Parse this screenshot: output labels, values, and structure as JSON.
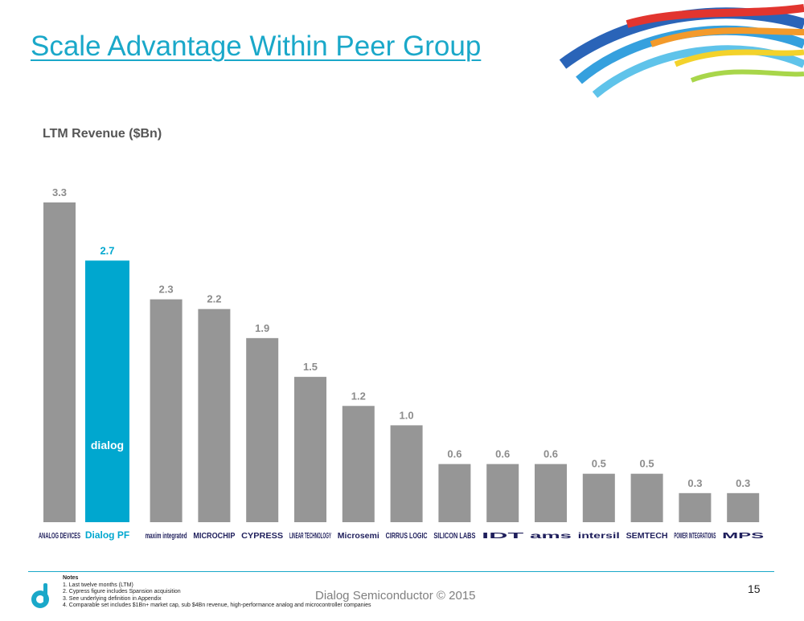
{
  "slide": {
    "title": "Scale Advantage Within Peer Group",
    "subtitle": "LTM Revenue ($Bn)",
    "page_number": "15",
    "copyright": "Dialog Semiconductor © 2015"
  },
  "notes": {
    "heading": "Notes",
    "items": [
      "1.  Last twelve months (LTM)",
      "2.  Cypress figure includes Spansion acquisition",
      "3.  See underlying definition in Appendix",
      "4.  Comparable set includes $1Bn+ market cap, sub $4Bn revenue, high-performance analog and microcontroller companies"
    ]
  },
  "chart_data": {
    "type": "bar",
    "title": "LTM Revenue ($Bn)",
    "xlabel": "",
    "ylabel": "",
    "ylim": [
      0,
      3.3
    ],
    "categories": [
      "ANALOG DEVICES",
      "Dialog PF",
      "maxim integrated",
      "MICROCHIP",
      "CYPRESS",
      "LINEAR TECHNOLOGY",
      "Microsemi",
      "CIRRUS LOGIC",
      "SILICON LABS",
      "IDT",
      "ams",
      "intersil",
      "SEMTECH",
      "POWER INTEGRATIONS",
      "MPS"
    ],
    "values": [
      3.3,
      2.7,
      2.3,
      2.2,
      1.9,
      1.5,
      1.2,
      1.0,
      0.6,
      0.6,
      0.6,
      0.5,
      0.5,
      0.3,
      0.3
    ],
    "value_labels": [
      "3.3",
      "2.7",
      "2.3",
      "2.2",
      "1.9",
      "1.5",
      "1.2",
      "1.0",
      "0.6",
      "0.6",
      "0.6",
      "0.5",
      "0.5",
      "0.3",
      "0.3"
    ],
    "highlight_index": 1,
    "highlight_bar_text": "dialog",
    "colors": {
      "bar": "#969696",
      "highlight": "#00a7cf",
      "label": "#8c8c8c",
      "highlight_label": "#00a7cf",
      "axis_label": "#1f1f5c"
    },
    "grid": false
  }
}
